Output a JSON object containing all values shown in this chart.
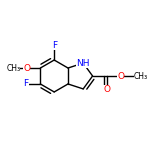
{
  "bg_color": "#ffffff",
  "bond_color": "#000000",
  "atom_colors": {
    "F": "#0000ff",
    "O": "#ff0000",
    "N": "#0000ff",
    "C": "#000000"
  },
  "bond_width": 1.0,
  "font_size": 6.5,
  "figsize": [
    1.52,
    1.52
  ],
  "dpi": 100,
  "xlim": [
    0.05,
    0.95
  ],
  "ylim": [
    0.22,
    0.78
  ]
}
